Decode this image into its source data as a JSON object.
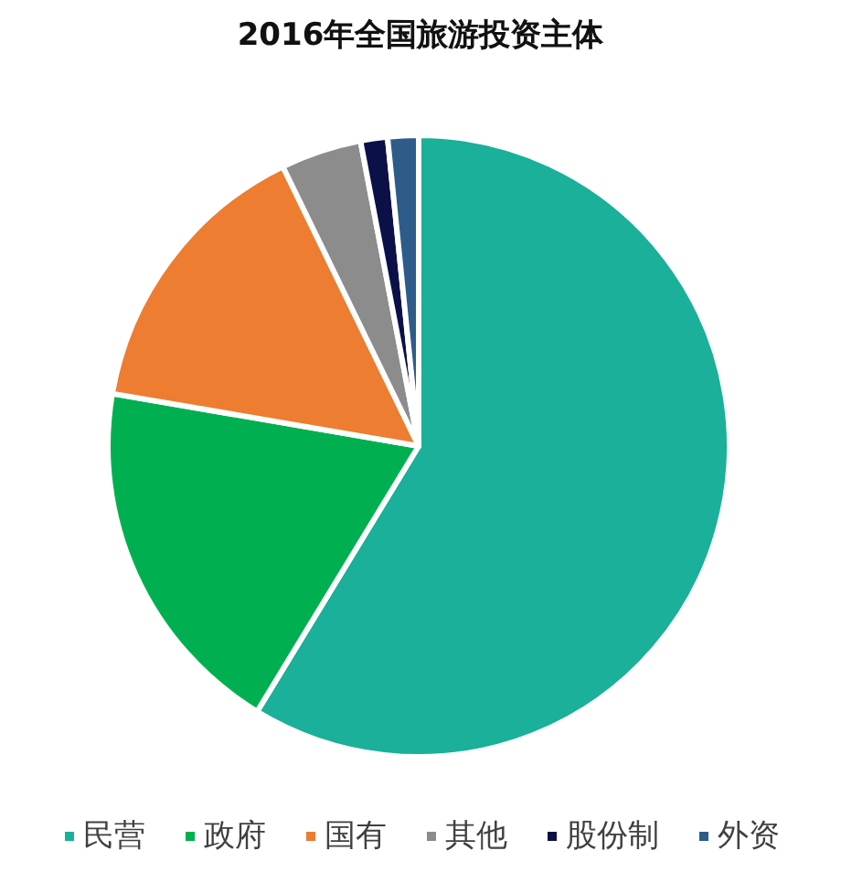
{
  "chart_data": {
    "type": "pie",
    "title": "2016年全国旅游投资主体",
    "categories": [
      "民营",
      "政府",
      "国有",
      "其他",
      "股份制",
      "外资"
    ],
    "values": [
      58.7,
      19.0,
      15.1,
      4.2,
      1.4,
      1.6
    ],
    "colors": [
      "#1ab09a",
      "#00b050",
      "#ed7d31",
      "#8c8c8c",
      "#0c1048",
      "#2e5c8a"
    ],
    "legend": "bottom"
  }
}
